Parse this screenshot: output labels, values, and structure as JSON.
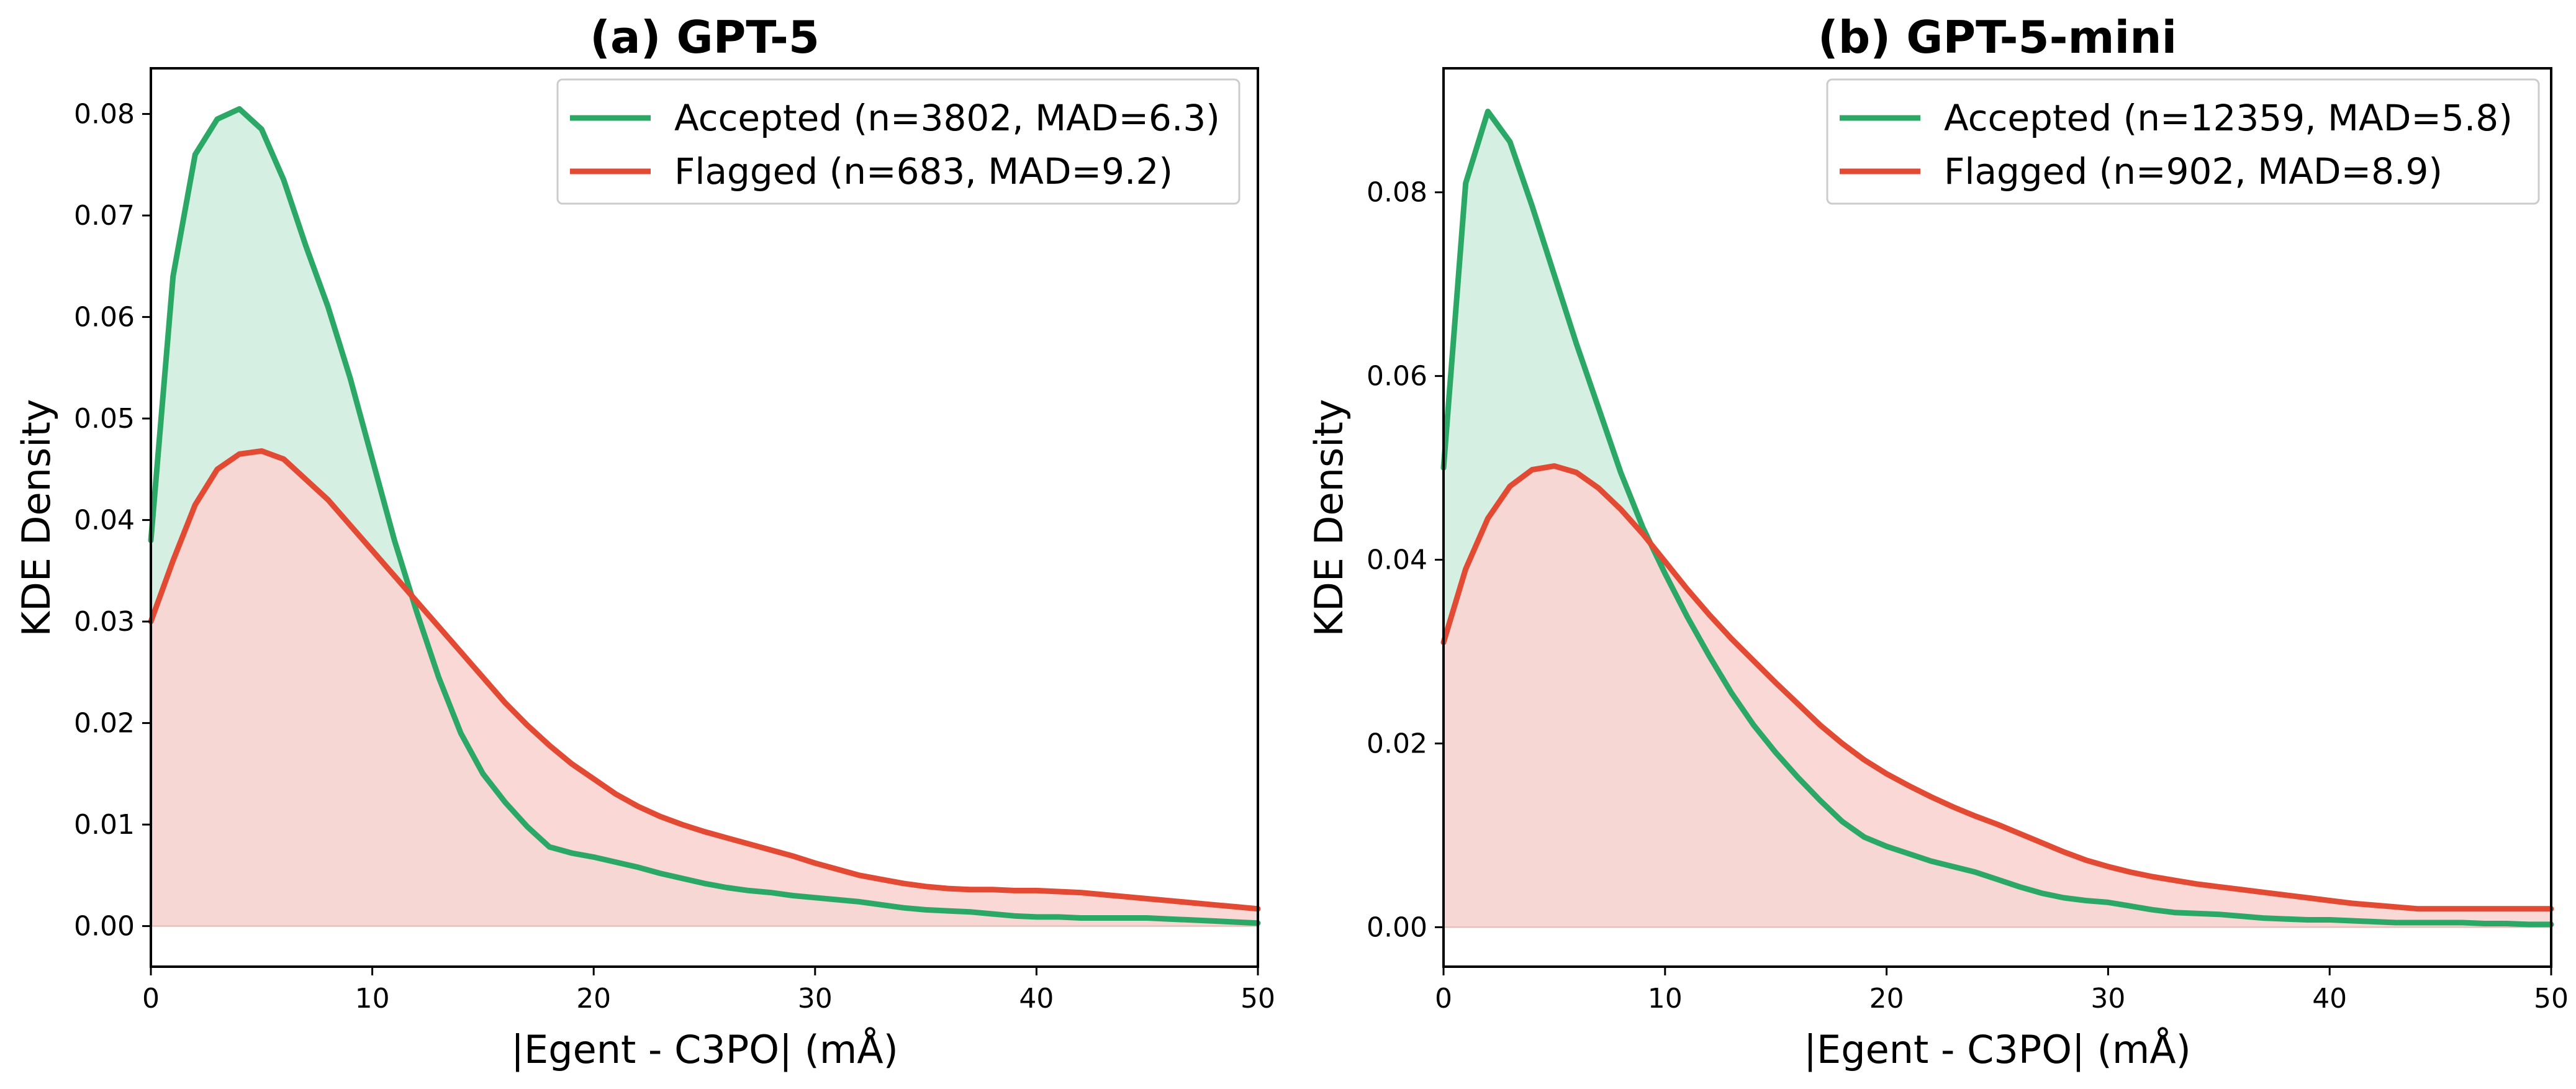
{
  "chart_data": [
    {
      "type": "area",
      "title": "(a) GPT-5",
      "xlabel": "|Egent - C3PO| (mÅ)",
      "ylabel": "KDE Density",
      "xlim": [
        0,
        50
      ],
      "ylim": [
        -0.004,
        0.0845
      ],
      "xticks": [
        0,
        10,
        20,
        30,
        40,
        50
      ],
      "xtick_labels": [
        "0",
        "10",
        "20",
        "30",
        "40",
        "50"
      ],
      "yticks": [
        0.0,
        0.01,
        0.02,
        0.03,
        0.04,
        0.05,
        0.06,
        0.07,
        0.08
      ],
      "ytick_labels": [
        "0.00",
        "0.01",
        "0.02",
        "0.03",
        "0.04",
        "0.05",
        "0.06",
        "0.07",
        "0.08"
      ],
      "legend_position": "top-right",
      "x": [
        0,
        1,
        2,
        3,
        4,
        5,
        6,
        7,
        8,
        9,
        10,
        11,
        12,
        13,
        14,
        15,
        16,
        17,
        18,
        19,
        20,
        21,
        22,
        23,
        24,
        25,
        26,
        27,
        28,
        29,
        30,
        31,
        32,
        33,
        34,
        35,
        36,
        37,
        38,
        39,
        40,
        41,
        42,
        43,
        44,
        45,
        46,
        47,
        48,
        49,
        50
      ],
      "series": [
        {
          "name": "Accepted (n=3802, MAD=6.3)",
          "color": "#2ca866",
          "fill": "#d2ede0",
          "values": [
            0.038,
            0.064,
            0.076,
            0.0795,
            0.0805,
            0.0785,
            0.0735,
            0.067,
            0.061,
            0.054,
            0.046,
            0.038,
            0.031,
            0.0245,
            0.019,
            0.015,
            0.0122,
            0.0098,
            0.0078,
            0.0072,
            0.0068,
            0.0063,
            0.0058,
            0.0052,
            0.0047,
            0.0042,
            0.0038,
            0.0035,
            0.0033,
            0.003,
            0.0028,
            0.0026,
            0.0024,
            0.0021,
            0.0018,
            0.0016,
            0.0015,
            0.0014,
            0.0012,
            0.001,
            0.0009,
            0.0009,
            0.0008,
            0.0008,
            0.0008,
            0.0008,
            0.0007,
            0.0006,
            0.0005,
            0.0004,
            0.0003
          ]
        },
        {
          "name": "Flagged (n=683, MAD=9.2)",
          "color": "#e34a33",
          "fill": "#f9d4d0",
          "values": [
            0.03,
            0.036,
            0.0415,
            0.045,
            0.0465,
            0.0468,
            0.046,
            0.044,
            0.042,
            0.0395,
            0.037,
            0.0345,
            0.032,
            0.0295,
            0.027,
            0.0245,
            0.022,
            0.0198,
            0.0178,
            0.016,
            0.0145,
            0.013,
            0.0118,
            0.0108,
            0.01,
            0.0093,
            0.0087,
            0.0081,
            0.0075,
            0.0069,
            0.0062,
            0.0056,
            0.005,
            0.0046,
            0.0042,
            0.0039,
            0.0037,
            0.0036,
            0.0036,
            0.0035,
            0.0035,
            0.0034,
            0.0033,
            0.0031,
            0.0029,
            0.0027,
            0.0025,
            0.0023,
            0.0021,
            0.0019,
            0.0017
          ]
        }
      ]
    },
    {
      "type": "area",
      "title": "(b) GPT-5-mini",
      "xlabel": "|Egent - C3PO| (mÅ)",
      "ylabel": "KDE Density",
      "xlim": [
        0,
        50
      ],
      "ylim": [
        -0.0043,
        0.0935
      ],
      "xticks": [
        0,
        10,
        20,
        30,
        40,
        50
      ],
      "xtick_labels": [
        "0",
        "10",
        "20",
        "30",
        "40",
        "50"
      ],
      "yticks": [
        0.0,
        0.02,
        0.04,
        0.06,
        0.08
      ],
      "ytick_labels": [
        "0.00",
        "0.02",
        "0.04",
        "0.06",
        "0.08"
      ],
      "legend_position": "top-right",
      "x": [
        0,
        1,
        2,
        3,
        4,
        5,
        6,
        7,
        8,
        9,
        10,
        11,
        12,
        13,
        14,
        15,
        16,
        17,
        18,
        19,
        20,
        21,
        22,
        23,
        24,
        25,
        26,
        27,
        28,
        29,
        30,
        31,
        32,
        33,
        34,
        35,
        36,
        37,
        38,
        39,
        40,
        41,
        42,
        43,
        44,
        45,
        46,
        47,
        48,
        49,
        50
      ],
      "series": [
        {
          "name": "Accepted (n=12359, MAD=5.8)",
          "color": "#2ca866",
          "fill": "#d2ede0",
          "values": [
            0.05,
            0.081,
            0.0888,
            0.0855,
            0.0785,
            0.071,
            0.0635,
            0.0565,
            0.0495,
            0.0435,
            0.0385,
            0.0338,
            0.0295,
            0.0255,
            0.022,
            0.019,
            0.0163,
            0.0138,
            0.0115,
            0.0098,
            0.0088,
            0.008,
            0.0072,
            0.0066,
            0.006,
            0.0052,
            0.0044,
            0.0037,
            0.0032,
            0.0029,
            0.0027,
            0.0023,
            0.0019,
            0.0016,
            0.0015,
            0.0014,
            0.0012,
            0.001,
            0.0009,
            0.0008,
            0.0008,
            0.0007,
            0.0006,
            0.0005,
            0.0005,
            0.0005,
            0.0005,
            0.0004,
            0.0004,
            0.0003,
            0.0003
          ]
        },
        {
          "name": "Flagged (n=902, MAD=8.9)",
          "color": "#e34a33",
          "fill": "#f9d4d0",
          "values": [
            0.031,
            0.039,
            0.0445,
            0.048,
            0.0498,
            0.0502,
            0.0495,
            0.0478,
            0.0455,
            0.0428,
            0.0398,
            0.0368,
            0.034,
            0.0314,
            0.029,
            0.0266,
            0.0243,
            0.022,
            0.02,
            0.0182,
            0.0167,
            0.0154,
            0.0142,
            0.0131,
            0.0121,
            0.0112,
            0.0102,
            0.0092,
            0.0082,
            0.0073,
            0.0066,
            0.006,
            0.0055,
            0.0051,
            0.0047,
            0.0044,
            0.0041,
            0.0038,
            0.0035,
            0.0032,
            0.0029,
            0.0026,
            0.0024,
            0.0022,
            0.002,
            0.002,
            0.002,
            0.002,
            0.002,
            0.002,
            0.002
          ]
        }
      ]
    }
  ]
}
